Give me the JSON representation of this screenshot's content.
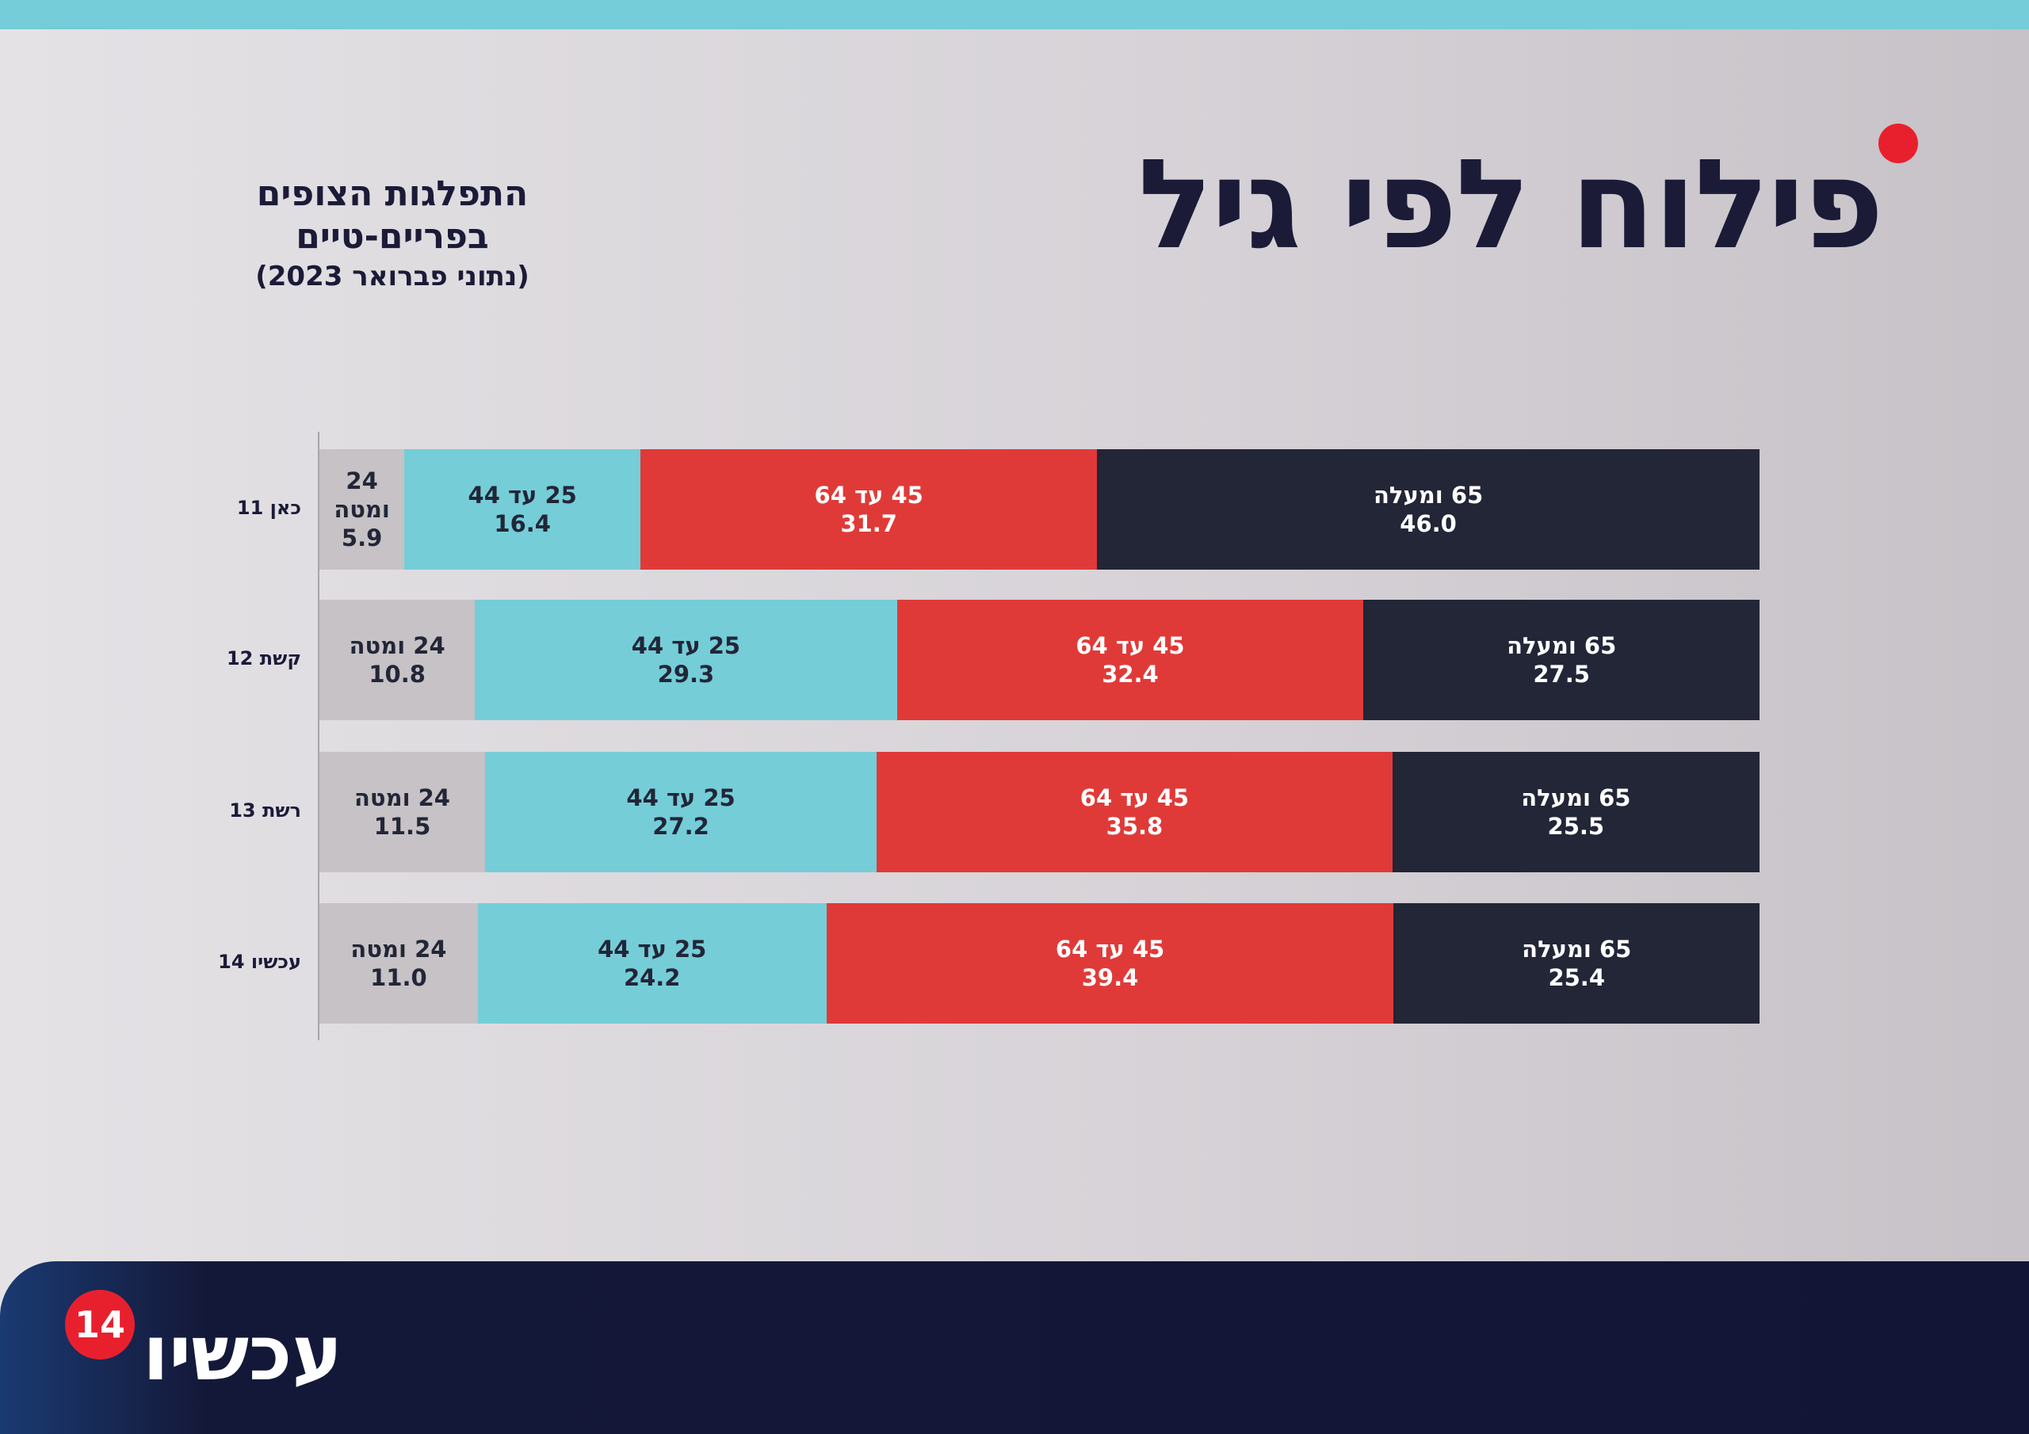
{
  "header": {
    "title": "פילוח לפי גיל",
    "subtitle_line1": "התפלגות הצופים בפריים-טיים",
    "subtitle_line2": "(נתוני פברואר 2023)"
  },
  "footer": {
    "logo_text": "עכשיו",
    "logo_badge": "14"
  },
  "colors": {
    "under_24": "#c6c2c5",
    "25_44": "#75cdd8",
    "45_64": "#e03a38",
    "65_plus": "#222637",
    "accent_red": "#e8202e",
    "navy": "#1b1b38"
  },
  "chart_data": {
    "type": "bar",
    "orientation": "horizontal",
    "stacked": true,
    "percent": true,
    "categories": [
      "כאן 11",
      "קשת 12",
      "רשת 13",
      "עכשיו 14"
    ],
    "series": [
      {
        "name": "24 ומטה",
        "color": "#c6c2c5",
        "label_color": "#222637",
        "values": [
          5.9,
          10.8,
          11.5,
          11.0
        ]
      },
      {
        "name": "25 עד 44",
        "color": "#75cdd8",
        "label_color": "#222637",
        "values": [
          16.4,
          29.3,
          27.2,
          24.2
        ]
      },
      {
        "name": "45 עד 64",
        "color": "#e03a38",
        "label_color": "#ffffff",
        "values": [
          31.7,
          32.4,
          35.8,
          39.4
        ]
      },
      {
        "name": "65 ומעלה",
        "color": "#222637",
        "label_color": "#ffffff",
        "values": [
          46.0,
          27.5,
          25.5,
          25.4
        ]
      }
    ],
    "xlim": [
      0,
      100
    ],
    "grid": false,
    "legend": "none"
  }
}
